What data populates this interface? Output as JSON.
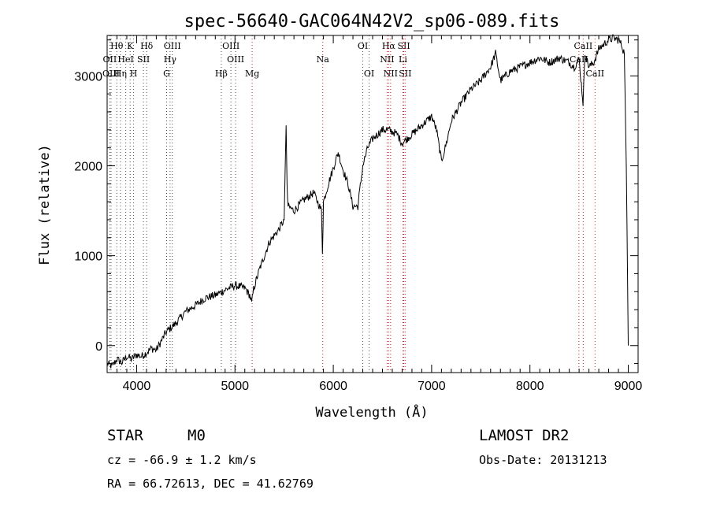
{
  "chart_data": {
    "type": "line",
    "title": "spec-56640-GAC064N42V2_sp06-089.fits",
    "xlabel": "Wavelength (Å)",
    "ylabel": "Flux (relative)",
    "xlim": [
      3700,
      9100
    ],
    "ylim": [
      -300,
      3450
    ],
    "xticks": [
      4000,
      5000,
      6000,
      7000,
      8000,
      9000
    ],
    "yticks": [
      0,
      1000,
      2000,
      3000
    ],
    "series": [
      {
        "name": "flux",
        "x": [
          3700,
          3750,
          3800,
          3850,
          3900,
          3950,
          4000,
          4050,
          4100,
          4150,
          4200,
          4250,
          4300,
          4350,
          4400,
          4500,
          4600,
          4700,
          4800,
          4900,
          5000,
          5100,
          5150,
          5170,
          5190,
          5250,
          5350,
          5450,
          5500,
          5520,
          5530,
          5540,
          5600,
          5700,
          5800,
          5880,
          5890,
          5900,
          5950,
          6050,
          6100,
          6150,
          6200,
          6250,
          6300,
          6350,
          6400,
          6450,
          6500,
          6560,
          6600,
          6650,
          6700,
          6750,
          6850,
          6950,
          7000,
          7050,
          7100,
          7150,
          7200,
          7300,
          7400,
          7500,
          7600,
          7650,
          7700,
          7800,
          7900,
          8000,
          8100,
          8200,
          8300,
          8400,
          8450,
          8500,
          8540,
          8560,
          8600,
          8650,
          8700,
          8750,
          8800,
          8850,
          8900,
          8930,
          8960,
          8980,
          9000
        ],
        "y": [
          -200,
          -230,
          -150,
          -190,
          -120,
          -150,
          -100,
          -120,
          -80,
          -30,
          -50,
          50,
          150,
          200,
          250,
          380,
          450,
          530,
          560,
          620,
          670,
          640,
          560,
          470,
          630,
          850,
          1150,
          1300,
          1400,
          2450,
          1750,
          1550,
          1500,
          1620,
          1700,
          1500,
          1050,
          1600,
          1800,
          2150,
          1950,
          1800,
          1550,
          1550,
          2000,
          2200,
          2300,
          2350,
          2400,
          2400,
          2380,
          2350,
          2250,
          2300,
          2400,
          2500,
          2550,
          2400,
          2050,
          2250,
          2500,
          2700,
          2850,
          2950,
          3100,
          3250,
          2950,
          3050,
          3100,
          3150,
          3200,
          3150,
          3200,
          3150,
          3100,
          3180,
          2700,
          3250,
          3100,
          3150,
          3300,
          3350,
          3400,
          3420,
          3400,
          3350,
          3250,
          2000,
          0
        ]
      }
    ],
    "lines": [
      {
        "label": "Hθ",
        "x": 3798,
        "row": 1,
        "color": "#4a4a4a"
      },
      {
        "label": "K",
        "x": 3934,
        "row": 1,
        "color": "#4a4a4a"
      },
      {
        "label": "Hδ",
        "x": 4102,
        "row": 1,
        "color": "#4a4a4a"
      },
      {
        "label": "OIII",
        "x": 4363,
        "row": 1,
        "color": "#4a4a4a"
      },
      {
        "label": "OIII",
        "x": 4959,
        "row": 1,
        "color": "#4a4a4a"
      },
      {
        "label": "OI",
        "x": 6300,
        "row": 1,
        "color": "#4a4a4a"
      },
      {
        "label": "Hα",
        "x": 6563,
        "row": 1,
        "color": "#cc2222"
      },
      {
        "label": "SII",
        "x": 6717,
        "row": 1,
        "color": "#cc2222"
      },
      {
        "label": "CaII",
        "x": 8542,
        "row": 1,
        "color": "#cc2222"
      },
      {
        "label": "OII",
        "x": 3727,
        "row": 2,
        "color": "#4a4a4a"
      },
      {
        "label": "HeI",
        "x": 3889,
        "row": 2,
        "color": "#4a4a4a"
      },
      {
        "label": "SII",
        "x": 4069,
        "row": 2,
        "color": "#4a4a4a"
      },
      {
        "label": "Hγ",
        "x": 4340,
        "row": 2,
        "color": "#4a4a4a"
      },
      {
        "label": "OIII",
        "x": 5007,
        "row": 2,
        "color": "#4a4a4a"
      },
      {
        "label": "Na",
        "x": 5893,
        "row": 2,
        "color": "#cc2222"
      },
      {
        "label": "NII",
        "x": 6548,
        "row": 2,
        "color": "#cc2222"
      },
      {
        "label": "Li",
        "x": 6708,
        "row": 2,
        "color": "#cc2222"
      },
      {
        "label": "CaII",
        "x": 8498,
        "row": 2,
        "color": "#cc2222"
      },
      {
        "label": "OIII",
        "x": 3740,
        "row": 3,
        "color": "#4a4a4a"
      },
      {
        "label": "Hη",
        "x": 3835,
        "row": 3,
        "color": "#4a4a4a"
      },
      {
        "label": "H",
        "x": 3969,
        "row": 3,
        "color": "#4a4a4a"
      },
      {
        "label": "G",
        "x": 4305,
        "row": 3,
        "color": "#4a4a4a"
      },
      {
        "label": "Hβ",
        "x": 4861,
        "row": 3,
        "color": "#4a4a4a"
      },
      {
        "label": "Mg",
        "x": 5175,
        "row": 3,
        "color": "#cc2222"
      },
      {
        "label": "OI",
        "x": 6364,
        "row": 3,
        "color": "#4a4a4a"
      },
      {
        "label": "NII",
        "x": 6583,
        "row": 3,
        "color": "#cc2222"
      },
      {
        "label": "SII",
        "x": 6731,
        "row": 3,
        "color": "#cc2222"
      },
      {
        "label": "CaII",
        "x": 8662,
        "row": 3,
        "color": "#cc2222"
      }
    ]
  },
  "info": {
    "object_class": "STAR",
    "subclass": "M0",
    "survey": "LAMOST DR2",
    "redshift": "cz = -66.9 ± 1.2 km/s",
    "obs_date": "Obs-Date: 20131213",
    "coords": "RA =  66.72613, DEC =  41.62769"
  }
}
